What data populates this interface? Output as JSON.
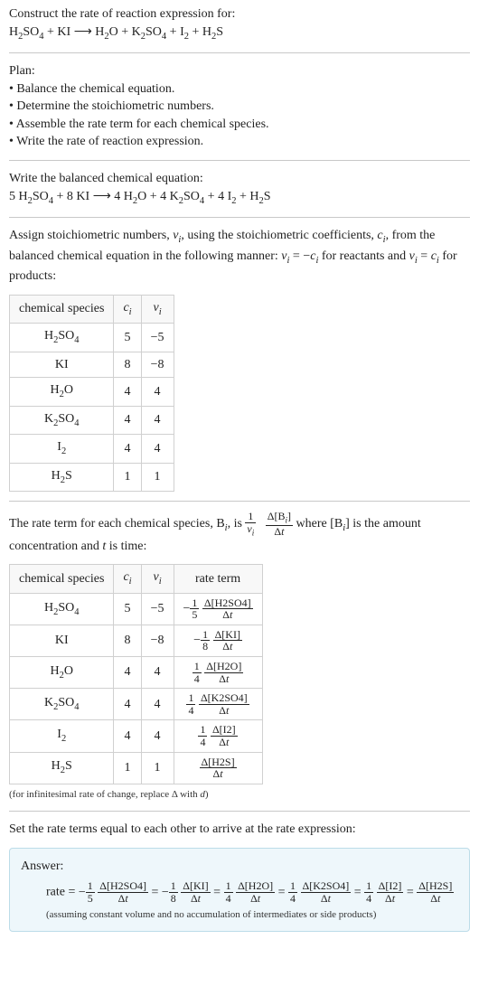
{
  "intro": {
    "line1": "Construct the rate of reaction expression for:",
    "equation_html": "H<sub>2</sub>SO<sub>4</sub> + KI ⟶ H<sub>2</sub>O + K<sub>2</sub>SO<sub>4</sub> + I<sub>2</sub> + H<sub>2</sub>S"
  },
  "plan": {
    "title": "Plan:",
    "items": [
      "Balance the chemical equation.",
      "Determine the stoichiometric numbers.",
      "Assemble the rate term for each chemical species.",
      "Write the rate of reaction expression."
    ]
  },
  "balanced": {
    "title": "Write the balanced chemical equation:",
    "equation_html": "5 H<sub>2</sub>SO<sub>4</sub> + 8 KI ⟶ 4 H<sub>2</sub>O + 4 K<sub>2</sub>SO<sub>4</sub> + 4 I<sub>2</sub> + H<sub>2</sub>S"
  },
  "assign": {
    "text_html": "Assign stoichiometric numbers, <span class=\"italic\">ν<sub>i</sub></span>, using the stoichiometric coefficients, <span class=\"italic\">c<sub>i</sub></span>, from the balanced chemical equation in the following manner: <span class=\"italic\">ν<sub>i</sub></span> = −<span class=\"italic\">c<sub>i</sub></span> for reactants and <span class=\"italic\">ν<sub>i</sub></span> = <span class=\"italic\">c<sub>i</sub></span> for products:"
  },
  "table1": {
    "headers": {
      "species": "chemical species",
      "ci_html": "<span class=\"italic\">c<sub>i</sub></span>",
      "vi_html": "<span class=\"italic\">ν<sub>i</sub></span>"
    },
    "rows": [
      {
        "species_html": "H<sub>2</sub>SO<sub>4</sub>",
        "ci": "5",
        "vi": "−5"
      },
      {
        "species_html": "KI",
        "ci": "8",
        "vi": "−8"
      },
      {
        "species_html": "H<sub>2</sub>O",
        "ci": "4",
        "vi": "4"
      },
      {
        "species_html": "K<sub>2</sub>SO<sub>4</sub>",
        "ci": "4",
        "vi": "4"
      },
      {
        "species_html": "I<sub>2</sub>",
        "ci": "4",
        "vi": "4"
      },
      {
        "species_html": "H<sub>2</sub>S",
        "ci": "1",
        "vi": "1"
      }
    ]
  },
  "rate_intro": {
    "pre_html": "The rate term for each chemical species, B<sub><span class=\"italic\">i</span></sub>, is ",
    "frac1_num_html": "1",
    "frac1_den_html": "<span class=\"italic\">ν<sub>i</sub></span>",
    "frac2_num_html": "Δ[B<sub><span class=\"italic\">i</span></sub>]",
    "frac2_den_html": "Δ<span class=\"italic\">t</span>",
    "post_html": " where [B<sub><span class=\"italic\">i</span></sub>] is the amount concentration and <span class=\"italic\">t</span> is time:"
  },
  "table2": {
    "headers": {
      "species": "chemical species",
      "ci_html": "<span class=\"italic\">c<sub>i</sub></span>",
      "vi_html": "<span class=\"italic\">ν<sub>i</sub></span>",
      "rate": "rate term"
    },
    "rows": [
      {
        "species_html": "H<sub>2</sub>SO<sub>4</sub>",
        "ci": "5",
        "vi": "−5",
        "sign": "−",
        "coef_num": "1",
        "coef_den": "5",
        "d_num_html": "Δ[H2SO4]",
        "d_den_html": "Δ<span class=\"italic\">t</span>"
      },
      {
        "species_html": "KI",
        "ci": "8",
        "vi": "−8",
        "sign": "−",
        "coef_num": "1",
        "coef_den": "8",
        "d_num_html": "Δ[KI]",
        "d_den_html": "Δ<span class=\"italic\">t</span>"
      },
      {
        "species_html": "H<sub>2</sub>O",
        "ci": "4",
        "vi": "4",
        "sign": "",
        "coef_num": "1",
        "coef_den": "4",
        "d_num_html": "Δ[H2O]",
        "d_den_html": "Δ<span class=\"italic\">t</span>"
      },
      {
        "species_html": "K<sub>2</sub>SO<sub>4</sub>",
        "ci": "4",
        "vi": "4",
        "sign": "",
        "coef_num": "1",
        "coef_den": "4",
        "d_num_html": "Δ[K2SO4]",
        "d_den_html": "Δ<span class=\"italic\">t</span>"
      },
      {
        "species_html": "I<sub>2</sub>",
        "ci": "4",
        "vi": "4",
        "sign": "",
        "coef_num": "1",
        "coef_den": "4",
        "d_num_html": "Δ[I2]",
        "d_den_html": "Δ<span class=\"italic\">t</span>"
      },
      {
        "species_html": "H<sub>2</sub>S",
        "ci": "1",
        "vi": "1",
        "sign": "",
        "coef_num": "",
        "coef_den": "",
        "d_num_html": "Δ[H2S]",
        "d_den_html": "Δ<span class=\"italic\">t</span>"
      }
    ],
    "note_html": "(for infinitesimal rate of change, replace Δ with <span class=\"italic\">d</span>)"
  },
  "setequal": "Set the rate terms equal to each other to arrive at the rate expression:",
  "answer": {
    "label": "Answer:",
    "prefix": "rate = ",
    "terms": [
      {
        "sign": "−",
        "coef_num": "1",
        "coef_den": "5",
        "d_num": "Δ[H2SO4]",
        "d_den_html": "Δ<span class=\"italic\">t</span>"
      },
      {
        "sign": "−",
        "coef_num": "1",
        "coef_den": "8",
        "d_num": "Δ[KI]",
        "d_den_html": "Δ<span class=\"italic\">t</span>"
      },
      {
        "sign": "",
        "coef_num": "1",
        "coef_den": "4",
        "d_num": "Δ[H2O]",
        "d_den_html": "Δ<span class=\"italic\">t</span>"
      },
      {
        "sign": "",
        "coef_num": "1",
        "coef_den": "4",
        "d_num": "Δ[K2SO4]",
        "d_den_html": "Δ<span class=\"italic\">t</span>"
      },
      {
        "sign": "",
        "coef_num": "1",
        "coef_den": "4",
        "d_num": "Δ[I2]",
        "d_den_html": "Δ<span class=\"italic\">t</span>"
      },
      {
        "sign": "",
        "coef_num": "",
        "coef_den": "",
        "d_num": "Δ[H2S]",
        "d_den_html": "Δ<span class=\"italic\">t</span>"
      }
    ],
    "footnote": "(assuming constant volume and no accumulation of intermediates or side products)"
  },
  "colors": {
    "answer_bg": "#eef7fb",
    "answer_border": "#bcdce8",
    "rule": "#c8c8c8",
    "cell_border": "#d0d0d0"
  }
}
